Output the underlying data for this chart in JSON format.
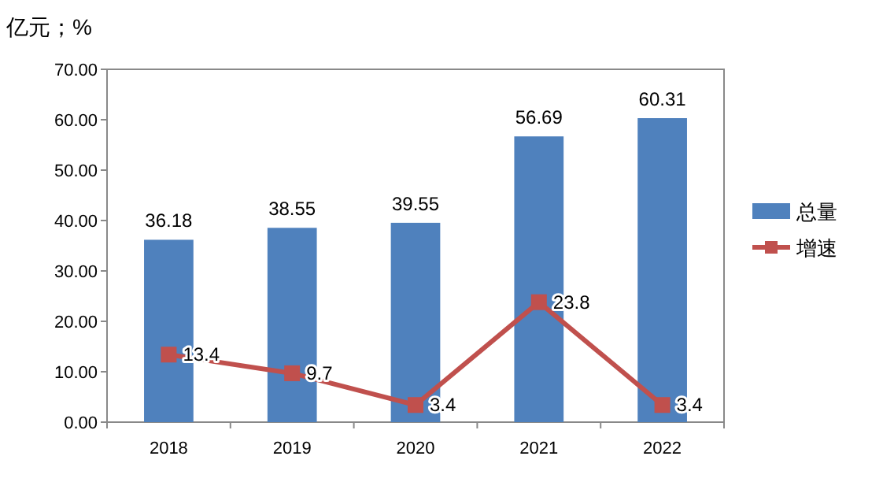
{
  "chart_data": {
    "type": "bar",
    "ylabel": "亿元；%",
    "categories": [
      "2018",
      "2019",
      "2020",
      "2021",
      "2022"
    ],
    "series": [
      {
        "name": "总量",
        "color": "#4f81bd",
        "values": [
          36.18,
          38.55,
          39.55,
          56.69,
          60.31
        ]
      },
      {
        "name": "增速",
        "type": "line",
        "color": "#c0504d",
        "values": [
          13.4,
          9.7,
          3.4,
          23.8,
          3.4
        ]
      }
    ],
    "ylim": [
      0,
      70
    ],
    "yticks": [
      {
        "value": 0,
        "label": "0.00"
      },
      {
        "value": 10,
        "label": "10.00"
      },
      {
        "value": 20,
        "label": "20.00"
      },
      {
        "value": 30,
        "label": "30.00"
      },
      {
        "value": 40,
        "label": "40.00"
      },
      {
        "value": 50,
        "label": "50.00"
      },
      {
        "value": 60,
        "label": "60.00"
      },
      {
        "value": 70,
        "label": "70.00"
      }
    ],
    "data_labels": true,
    "legend": "right",
    "marker": "square",
    "line_style": "solid"
  }
}
